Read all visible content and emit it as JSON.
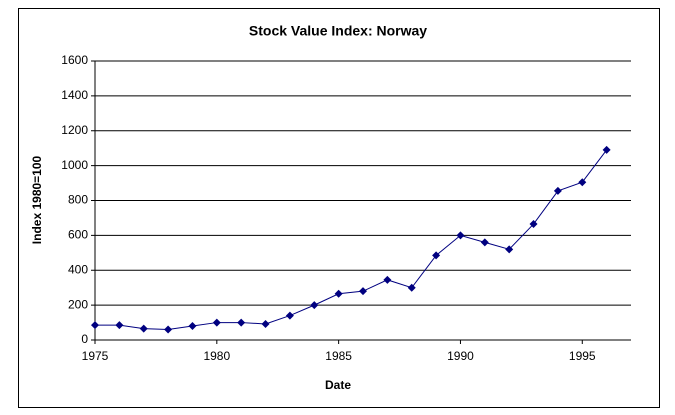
{
  "chart_data": {
    "type": "line",
    "title": "Stock Value Index: Norway",
    "x_label": "Date",
    "y_label": "Index 1980=100",
    "x": [
      1975,
      1976,
      1977,
      1978,
      1979,
      1980,
      1981,
      1982,
      1983,
      1984,
      1985,
      1986,
      1987,
      1988,
      1989,
      1990,
      1991,
      1992,
      1993,
      1994,
      1995,
      1996
    ],
    "series": [
      {
        "name": "Norway",
        "color": "#000080",
        "values": [
          85,
          85,
          65,
          60,
          80,
          100,
          100,
          92,
          140,
          200,
          265,
          280,
          345,
          300,
          485,
          600,
          560,
          520,
          665,
          855,
          905,
          1090
        ]
      }
    ],
    "xlim": [
      1975,
      1997
    ],
    "xticks": [
      1975,
      1980,
      1985,
      1990,
      1995
    ],
    "ylim": [
      0,
      1600
    ],
    "yticks": [
      0,
      200,
      400,
      600,
      800,
      1000,
      1200,
      1400,
      1600
    ],
    "grid": true
  }
}
